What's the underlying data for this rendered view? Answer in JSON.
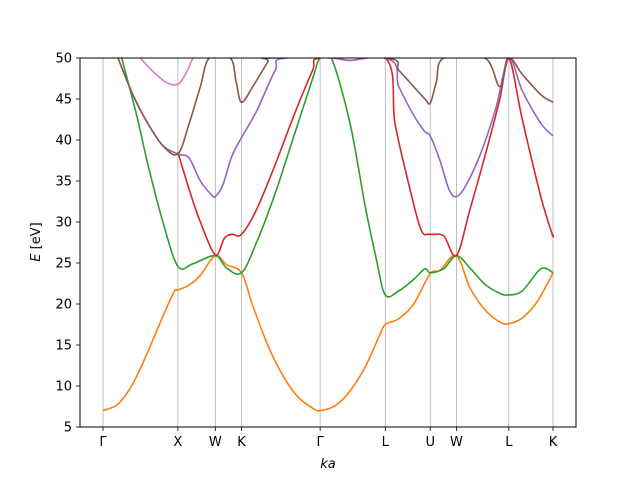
{
  "chart_data": {
    "type": "line",
    "title": "",
    "xlabel": "ka",
    "ylabel_italic": "E",
    "ylabel_unit": " [eV]",
    "ylim": [
      5,
      50
    ],
    "yticks": [
      5,
      10,
      15,
      20,
      25,
      30,
      35,
      40,
      45,
      50
    ],
    "xlim": [
      -0.3,
      5.95
    ],
    "k_points": [
      {
        "label": "Γ",
        "x": 0
      },
      {
        "label": "X",
        "x": 1
      },
      {
        "label": "W",
        "x": 1.5
      },
      {
        "label": "K",
        "x": 1.85
      },
      {
        "label": "Γ",
        "x": 2.9
      },
      {
        "label": "L",
        "x": 3.77
      },
      {
        "label": "U",
        "x": 4.37
      },
      {
        "label": "W",
        "x": 4.72
      },
      {
        "label": "L",
        "x": 5.42
      },
      {
        "label": "K",
        "x": 6.01
      }
    ],
    "grid": "vertical lines at high-symmetry points",
    "series": [
      {
        "color": "#ff7f0e",
        "points": [
          [
            0,
            7
          ],
          [
            0.2,
            7.8
          ],
          [
            0.4,
            10.3
          ],
          [
            0.6,
            14.2
          ],
          [
            0.8,
            18.5
          ],
          [
            0.95,
            21.5
          ],
          [
            1.0,
            21.7
          ],
          [
            1.15,
            22.3
          ],
          [
            1.3,
            23.5
          ],
          [
            1.5,
            25.9
          ],
          [
            1.65,
            24.8
          ],
          [
            1.85,
            23.8
          ],
          [
            2.0,
            19.8
          ],
          [
            2.2,
            15.0
          ],
          [
            2.4,
            11.3
          ],
          [
            2.6,
            8.7
          ],
          [
            2.8,
            7.3
          ],
          [
            2.9,
            7.0
          ],
          [
            3.1,
            7.6
          ],
          [
            3.3,
            9.4
          ],
          [
            3.5,
            12.3
          ],
          [
            3.7,
            16.3
          ],
          [
            3.77,
            17.5
          ],
          [
            3.95,
            18.2
          ],
          [
            4.15,
            20.0
          ],
          [
            4.37,
            23.7
          ],
          [
            4.5,
            24.1
          ],
          [
            4.72,
            25.9
          ],
          [
            4.9,
            22.0
          ],
          [
            5.1,
            19.3
          ],
          [
            5.3,
            17.8
          ],
          [
            5.42,
            17.6
          ],
          [
            5.6,
            18.3
          ],
          [
            5.8,
            20.3
          ],
          [
            6.01,
            23.8
          ]
        ]
      },
      {
        "color": "#2ca02c",
        "points": [
          [
            0.25,
            50
          ],
          [
            0.45,
            43
          ],
          [
            0.6,
            37
          ],
          [
            0.8,
            30
          ],
          [
            1.0,
            24.6
          ],
          [
            1.2,
            24.9
          ],
          [
            1.5,
            25.9
          ],
          [
            1.65,
            24.4
          ],
          [
            1.85,
            23.8
          ],
          [
            2.05,
            27.5
          ],
          [
            2.3,
            33.5
          ],
          [
            2.55,
            40.5
          ],
          [
            2.8,
            47.5
          ],
          [
            2.9,
            50
          ],
          [
            3.05,
            50
          ],
          [
            3.3,
            42
          ],
          [
            3.5,
            32
          ],
          [
            3.65,
            25.5
          ],
          [
            3.77,
            21.1
          ],
          [
            3.95,
            21.6
          ],
          [
            4.15,
            23.0
          ],
          [
            4.3,
            24.3
          ],
          [
            4.37,
            23.8
          ],
          [
            4.55,
            24.3
          ],
          [
            4.72,
            25.9
          ],
          [
            4.9,
            24.4
          ],
          [
            5.1,
            22.4
          ],
          [
            5.3,
            21.3
          ],
          [
            5.42,
            21.1
          ],
          [
            5.6,
            21.6
          ],
          [
            5.85,
            24.3
          ],
          [
            6.01,
            23.8
          ]
        ]
      },
      {
        "color": "#d62728",
        "points": [
          [
            1.0,
            38.5
          ],
          [
            1.15,
            34.0
          ],
          [
            1.3,
            30.0
          ],
          [
            1.5,
            26.0
          ],
          [
            1.62,
            28.0
          ],
          [
            1.72,
            28.5
          ],
          [
            1.85,
            28.5
          ],
          [
            2.05,
            31.5
          ],
          [
            2.3,
            37.0
          ],
          [
            2.55,
            43.0
          ],
          [
            2.8,
            48.5
          ],
          [
            2.9,
            50
          ],
          [
            3.77,
            50
          ],
          [
            3.9,
            42
          ],
          [
            4.1,
            34
          ],
          [
            4.25,
            29.0
          ],
          [
            4.37,
            28.5
          ],
          [
            4.55,
            28.3
          ],
          [
            4.72,
            25.9
          ],
          [
            4.9,
            31.5
          ],
          [
            5.1,
            38.0
          ],
          [
            5.3,
            45.0
          ],
          [
            5.42,
            50
          ],
          [
            5.6,
            42.5
          ],
          [
            5.85,
            33.0
          ],
          [
            6.0,
            28.5
          ],
          [
            6.01,
            28.5
          ]
        ]
      },
      {
        "color": "#9467bd",
        "points": [
          [
            0.2,
            50
          ],
          [
            0.4,
            45.5
          ],
          [
            0.6,
            42.0
          ],
          [
            0.8,
            39.3
          ],
          [
            1.0,
            38.3
          ],
          [
            1.15,
            37.8
          ],
          [
            1.3,
            35.0
          ],
          [
            1.45,
            33.3
          ],
          [
            1.5,
            33.1
          ],
          [
            1.6,
            34.5
          ],
          [
            1.72,
            38.0
          ],
          [
            1.85,
            40.3
          ],
          [
            2.05,
            43.5
          ],
          [
            2.3,
            48.5
          ],
          [
            2.45,
            50
          ],
          [
            3.77,
            50
          ],
          [
            3.95,
            46.5
          ],
          [
            4.15,
            43.0
          ],
          [
            4.3,
            41.0
          ],
          [
            4.37,
            40.5
          ],
          [
            4.5,
            37.5
          ],
          [
            4.62,
            34.0
          ],
          [
            4.72,
            33.1
          ],
          [
            4.85,
            34.5
          ],
          [
            5.05,
            38.5
          ],
          [
            5.25,
            44.0
          ],
          [
            5.42,
            50
          ],
          [
            5.6,
            46.0
          ],
          [
            5.85,
            42.0
          ],
          [
            6.01,
            40.5
          ]
        ]
      },
      {
        "color": "#8c564b",
        "points": [
          [
            0.2,
            50
          ],
          [
            0.4,
            45.5
          ],
          [
            0.6,
            42.0
          ],
          [
            0.8,
            39.3
          ],
          [
            1.0,
            38.3
          ],
          [
            1.15,
            42.0
          ],
          [
            1.3,
            46.5
          ],
          [
            1.42,
            50
          ],
          [
            1.7,
            50
          ],
          [
            1.78,
            47.0
          ],
          [
            1.85,
            44.6
          ],
          [
            2.0,
            46.5
          ],
          [
            2.2,
            49.5
          ],
          [
            2.25,
            50
          ],
          [
            3.77,
            50
          ],
          [
            3.95,
            48.5
          ],
          [
            4.15,
            46.5
          ],
          [
            4.3,
            45.0
          ],
          [
            4.37,
            44.5
          ],
          [
            4.45,
            47.0
          ],
          [
            4.55,
            50
          ],
          [
            5.1,
            50
          ],
          [
            5.3,
            46.5
          ],
          [
            5.42,
            50
          ],
          [
            5.6,
            48.0
          ],
          [
            5.85,
            45.5
          ],
          [
            6.01,
            44.6
          ]
        ]
      },
      {
        "color": "#e377c2",
        "points": [
          [
            0.5,
            50
          ],
          [
            0.65,
            48.5
          ],
          [
            0.85,
            47.0
          ],
          [
            1.0,
            46.8
          ],
          [
            1.1,
            48.0
          ],
          [
            1.2,
            50
          ]
        ]
      },
      {
        "color": "#e377c2",
        "points": [
          [
            3.0,
            50
          ],
          [
            3.15,
            49.9
          ],
          [
            3.3,
            49.7
          ],
          [
            3.45,
            49.9
          ],
          [
            3.55,
            50
          ]
        ]
      },
      {
        "color": "#9467bd",
        "points": [
          [
            3.1,
            50
          ],
          [
            3.3,
            49.7
          ],
          [
            3.5,
            50
          ]
        ]
      }
    ]
  }
}
